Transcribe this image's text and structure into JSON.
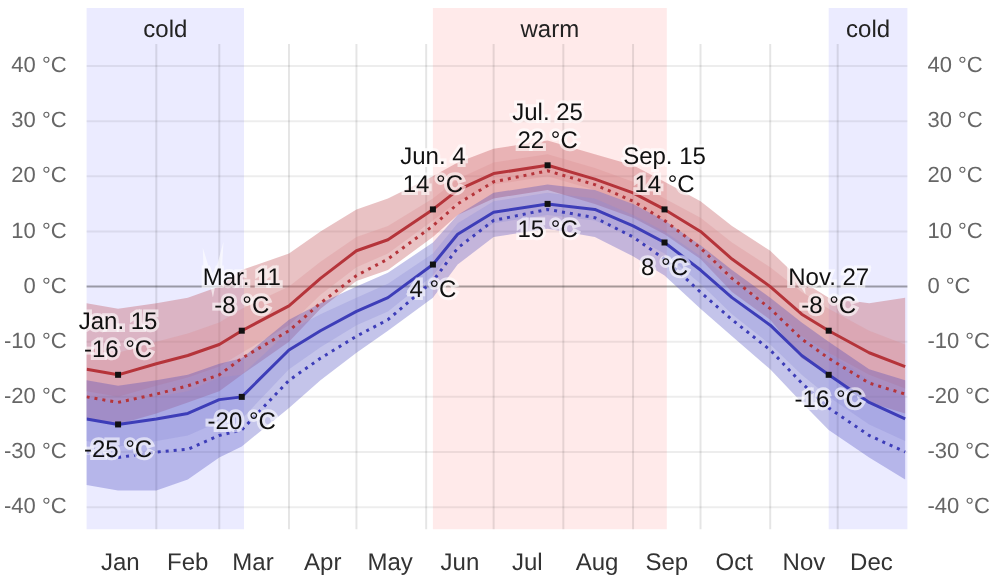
{
  "chart_data": {
    "type": "line",
    "x": [
      "--01-01",
      "--01-15",
      "--02-01",
      "--02-15",
      "--03-01",
      "--03-11",
      "--04-01",
      "--04-15",
      "--05-01",
      "--05-15",
      "--06-04",
      "--06-15",
      "--07-01",
      "--07-25",
      "--08-15",
      "--09-01",
      "--09-15",
      "--10-01",
      "--10-15",
      "--11-01",
      "--11-15",
      "--11-27",
      "--12-15",
      "--12-31"
    ],
    "series": [
      {
        "color": "#b5343a",
        "values": [
          -15,
          -16,
          -14,
          -12.5,
          -10.5,
          -8,
          -3.5,
          1.5,
          6.5,
          8.5,
          14,
          17.5,
          20.5,
          22,
          19.5,
          17,
          14,
          10,
          5,
          0,
          -5,
          -8,
          -12,
          -14.5
        ],
        "lower": [
          -24,
          -25,
          -23,
          -21,
          -19,
          -16,
          -10,
          -4,
          1,
          3,
          9,
          13,
          16,
          17.5,
          15,
          12.5,
          9.5,
          5,
          -1,
          -6,
          -13,
          -16,
          -21,
          -23
        ],
        "upper": [
          -3,
          -4,
          -3,
          -2,
          0,
          3,
          6,
          10,
          14,
          16,
          20,
          22.5,
          25,
          26.5,
          24,
          22,
          19,
          15.5,
          11,
          6.5,
          1,
          -2,
          -3,
          -2
        ]
      },
      {
        "color": "#d98a8e",
        "values": [
          null,
          null,
          null,
          null,
          null,
          null,
          null,
          null,
          null,
          null,
          null,
          null,
          null,
          null,
          null,
          null,
          null,
          null,
          null,
          null,
          null,
          null,
          null,
          null
        ],
        "lower": [
          -19,
          -20,
          -18,
          -16.5,
          -14.5,
          -12,
          -7,
          -1.5,
          3.5,
          6,
          12,
          15.5,
          18.5,
          20,
          17.5,
          15,
          12,
          7.5,
          2,
          -3.5,
          -9,
          -12,
          -16,
          -18.5
        ],
        "upper": [
          -11,
          -12,
          -10,
          -8.5,
          -6.5,
          -4,
          0,
          4.5,
          9,
          11,
          16,
          19.5,
          22.5,
          24,
          21.5,
          19,
          16,
          12.5,
          8,
          3.5,
          -1,
          -4,
          -8,
          -10.5
        ]
      },
      {
        "color": "#b5343a",
        "line_style": "dotted",
        "values": [
          -20,
          -21,
          -19.5,
          -18,
          -16,
          -13,
          -8,
          -3,
          2,
          5,
          11,
          15,
          19,
          21,
          18.5,
          15.5,
          12,
          7,
          1.5,
          -4,
          -9.5,
          -13,
          -17.5,
          -19.5
        ]
      },
      {
        "color": "#3d3db8",
        "values": [
          -24,
          -25,
          -24,
          -23,
          -20.5,
          -20,
          -11.5,
          -8,
          -4.5,
          -2,
          4,
          9.5,
          13.5,
          15,
          14,
          11,
          8,
          3,
          -2,
          -7,
          -12.5,
          -16,
          -21,
          -24
        ],
        "lower": [
          -36,
          -37,
          -37,
          -35,
          -31,
          -29,
          -22,
          -17,
          -12,
          -8,
          -2,
          4,
          9,
          10.5,
          9,
          5.5,
          2,
          -4,
          -9,
          -15,
          -21,
          -26,
          -31,
          -35
        ],
        "upper": [
          -17,
          -18,
          -17,
          -16,
          -14,
          -13,
          -6,
          -3,
          0,
          2.5,
          8,
          13,
          17,
          18.5,
          17.5,
          15,
          12,
          7.5,
          3,
          -2,
          -6.5,
          -10,
          -15,
          -17
        ]
      },
      {
        "color": "#8a8ad8",
        "values": [
          null,
          null,
          null,
          null,
          null,
          null,
          null,
          null,
          null,
          null,
          null,
          null,
          null,
          null,
          null,
          null,
          null,
          null,
          null,
          null,
          null,
          null,
          null,
          null
        ],
        "lower": [
          -28,
          -29,
          -28,
          -27,
          -24.5,
          -24,
          -15,
          -11,
          -7,
          -4.5,
          2,
          7.5,
          11.5,
          13,
          12,
          9,
          6,
          0.5,
          -5,
          -10.5,
          -16,
          -20,
          -25,
          -28
        ],
        "upper": [
          -20,
          -21,
          -20,
          -19,
          -16.5,
          -16,
          -8,
          -5,
          -2,
          0.5,
          6,
          11.5,
          15.5,
          17,
          16,
          13,
          10,
          5.5,
          1,
          -3.5,
          -9,
          -12,
          -17,
          -20
        ]
      },
      {
        "color": "#3d3db8",
        "line_style": "dotted",
        "values": [
          -30,
          -31,
          -30,
          -29.5,
          -27,
          -26,
          -17,
          -13,
          -9,
          -6,
          1,
          7,
          12,
          14,
          12.5,
          9,
          5,
          -1,
          -6,
          -11.5,
          -17.5,
          -22,
          -27,
          -30
        ]
      }
    ],
    "xlim": [
      "--01-01",
      "--12-31"
    ],
    "xticks": [
      {
        "value": "--01-16",
        "label": "Jan"
      },
      {
        "value": "--02-01",
        "label": null
      },
      {
        "value": "--02-15",
        "label": "Feb"
      },
      {
        "value": "--03-01",
        "label": null
      },
      {
        "value": "--03-16",
        "label": "Mar"
      },
      {
        "value": "--04-01",
        "label": null
      },
      {
        "value": "--04-16",
        "label": "Apr"
      },
      {
        "value": "--05-01",
        "label": null
      },
      {
        "value": "--05-16",
        "label": "May"
      },
      {
        "value": "--06-01",
        "label": null
      },
      {
        "value": "--06-16",
        "label": "Jun"
      },
      {
        "value": "--07-01",
        "label": null
      },
      {
        "value": "--07-16",
        "label": "Jul"
      },
      {
        "value": "--08-01",
        "label": null
      },
      {
        "value": "--08-16",
        "label": "Aug"
      },
      {
        "value": "--09-01",
        "label": null
      },
      {
        "value": "--09-16",
        "label": "Sep"
      },
      {
        "value": "--10-01",
        "label": null
      },
      {
        "value": "--10-16",
        "label": "Oct"
      },
      {
        "value": "--11-01",
        "label": null
      },
      {
        "value": "--11-16",
        "label": "Nov"
      },
      {
        "value": "--12-01",
        "label": null
      },
      {
        "value": "--12-16",
        "label": "Dec"
      }
    ],
    "ylim": [
      -44,
      44
    ],
    "yticks": [
      {
        "value": -40,
        "label": "-40 °C"
      },
      {
        "value": -30,
        "label": "-30 °C"
      },
      {
        "value": -20,
        "label": "-20 °C"
      },
      {
        "value": -10,
        "label": "-10 °C"
      },
      {
        "value": 0,
        "label": "0 °C"
      },
      {
        "value": 10,
        "label": "10 °C"
      },
      {
        "value": 20,
        "label": "20 °C"
      },
      {
        "value": 30,
        "label": "30 °C"
      },
      {
        "value": 40,
        "label": "40 °C"
      }
    ],
    "y2lim": [
      -44,
      44
    ],
    "y2ticks": [
      {
        "value": -40,
        "label": "-40 °C"
      },
      {
        "value": -30,
        "label": "-30 °C"
      },
      {
        "value": -20,
        "label": "-20 °C"
      },
      {
        "value": -10,
        "label": "-10 °C"
      },
      {
        "value": 0,
        "label": "0 °C"
      },
      {
        "value": 10,
        "label": "10 °C"
      },
      {
        "value": 20,
        "label": "20 °C"
      },
      {
        "value": 30,
        "label": "30 °C"
      },
      {
        "value": 40,
        "label": "40 °C"
      }
    ],
    "grid": true,
    "marker": "none",
    "legend": false,
    "bands": [
      {
        "axis": "x",
        "from": "--01-01",
        "to": "--03-11",
        "label": "cold",
        "color": "#ebebff"
      },
      {
        "axis": "x",
        "from": "--06-04",
        "to": "--09-15",
        "label": "warm",
        "color": "#ffeaea"
      },
      {
        "axis": "x",
        "from": "--11-27",
        "to": "--12-31",
        "label": "cold",
        "color": "#ebebff"
      }
    ],
    "annotations": [
      {
        "text": "Jan. 15\n-16 °C",
        "x": "--01-15",
        "y": -16
      },
      {
        "text": "-25 °C",
        "x": "--01-15",
        "y": -25
      },
      {
        "text": "Mar. 11\n-8 °C",
        "x": "--03-11",
        "y": -8
      },
      {
        "text": "-20 °C",
        "x": "--03-11",
        "y": -20
      },
      {
        "text": "Jun. 4\n14 °C",
        "x": "--06-04",
        "y": 14
      },
      {
        "text": "4 °C",
        "x": "--06-04",
        "y": 4
      },
      {
        "text": "Jul. 25\n22 °C",
        "x": "--07-25",
        "y": 22
      },
      {
        "text": "15 °C",
        "x": "--07-25",
        "y": 15
      },
      {
        "text": "Sep. 15\n14 °C",
        "x": "--09-15",
        "y": 14
      },
      {
        "text": "8 °C",
        "x": "--09-15",
        "y": 8
      },
      {
        "text": "Nov. 27\n-8 °C",
        "x": "--11-27",
        "y": -8
      },
      {
        "text": "-16 °C",
        "x": "--11-27",
        "y": -16
      }
    ]
  }
}
